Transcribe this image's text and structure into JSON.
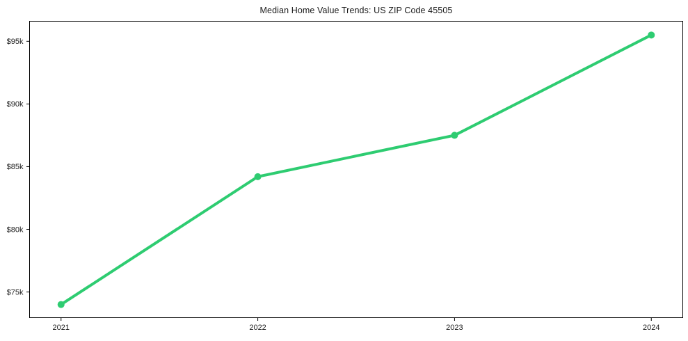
{
  "chart_data": {
    "type": "line",
    "title": "Median Home Value Trends: US ZIP Code 45505",
    "x": [
      2021,
      2022,
      2023,
      2024
    ],
    "series": [
      {
        "name": "Median Home Value",
        "values": [
          74000,
          84200,
          87500,
          95500
        ]
      }
    ],
    "x_tick_labels": [
      "2021",
      "2022",
      "2023",
      "2024"
    ],
    "y_ticks": [
      75000,
      80000,
      85000,
      90000,
      95000
    ],
    "y_tick_labels": [
      "$75k",
      "$80k",
      "$85k",
      "$90k",
      "$95k"
    ],
    "xlim": [
      2020.84,
      2024.16
    ],
    "ylim": [
      72950,
      96600
    ],
    "xlabel": "",
    "ylabel": "",
    "grid": false,
    "legend_position": "none",
    "line_color": "#2ecc71",
    "marker": "circle",
    "frame_color": "#000000",
    "background_color": "#ffffff",
    "text_color": "#1a1a1a"
  }
}
